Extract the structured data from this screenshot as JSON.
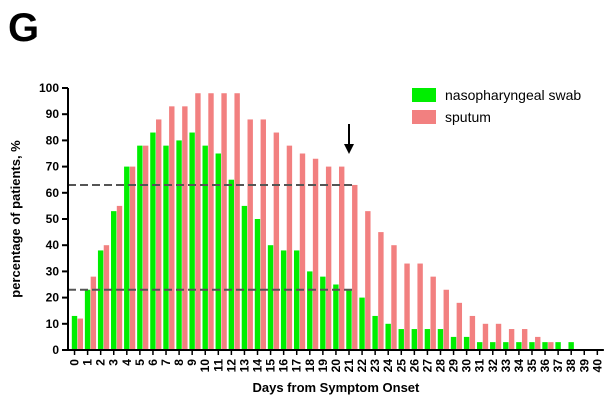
{
  "panel_label": "G",
  "chart_data": {
    "type": "bar",
    "xlabel": "Days from Symptom Onset",
    "ylabel": "percentage of patients, %",
    "ylim": [
      0,
      100
    ],
    "yticks": [
      0,
      10,
      20,
      30,
      40,
      50,
      60,
      70,
      80,
      90,
      100
    ],
    "categories": [
      "0",
      "1",
      "2",
      "3",
      "4",
      "5",
      "6",
      "7",
      "8",
      "9",
      "10",
      "11",
      "12",
      "13",
      "14",
      "15",
      "16",
      "17",
      "18",
      "19",
      "20",
      "21",
      "22",
      "23",
      "24",
      "25",
      "26",
      "27",
      "28",
      "29",
      "30",
      "31",
      "32",
      "33",
      "34",
      "35",
      "36",
      "37",
      "38",
      "39",
      "40"
    ],
    "series": [
      {
        "name": "nasopharyngeal swab",
        "color": "#00ee00",
        "values": [
          13,
          23,
          38,
          53,
          70,
          78,
          83,
          78,
          80,
          83,
          78,
          75,
          65,
          55,
          50,
          40,
          38,
          38,
          30,
          28,
          25,
          23,
          20,
          13,
          10,
          8,
          8,
          8,
          8,
          5,
          5,
          3,
          3,
          3,
          3,
          3,
          3,
          3,
          3,
          0,
          0
        ]
      },
      {
        "name": "sputum",
        "color": "#f28080",
        "values": [
          12,
          28,
          40,
          55,
          70,
          78,
          88,
          93,
          93,
          98,
          98,
          98,
          98,
          88,
          88,
          83,
          78,
          75,
          73,
          70,
          70,
          63,
          53,
          45,
          40,
          33,
          33,
          28,
          23,
          18,
          13,
          10,
          10,
          8,
          8,
          5,
          3,
          0,
          0,
          0,
          0
        ]
      }
    ],
    "reference_lines_y": [
      63,
      23
    ],
    "annotation_arrow_x": 21,
    "grid": false,
    "legend_position": "top-right"
  }
}
